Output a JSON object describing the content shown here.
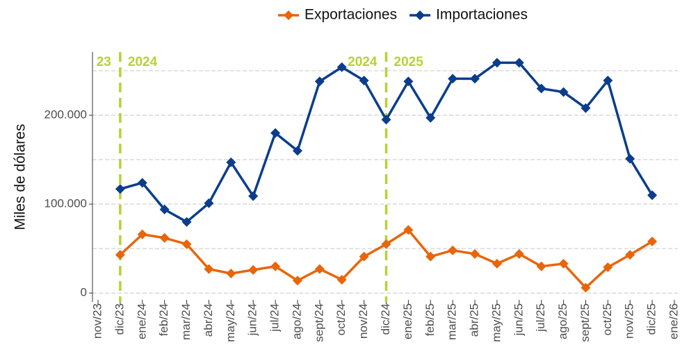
{
  "chart_data": {
    "type": "line",
    "y_label": "Miles de dólares",
    "categories": [
      "nov/23",
      "dic/23",
      "ene/24",
      "feb/24",
      "mar/24",
      "abr/24",
      "may/24",
      "jun/24",
      "jul/24",
      "ago/24",
      "sept/24",
      "oct/24",
      "nov/24",
      "dic/24",
      "ene/25",
      "feb/25",
      "mar/25",
      "abr/25",
      "may/25",
      "jun/25",
      "jul/25",
      "ago/25",
      "sept/25",
      "oct/25",
      "nov/25",
      "dic/25",
      "ene/26"
    ],
    "series": [
      {
        "name": "Exportaciones",
        "color": "#e8650a",
        "values": [
          null,
          43000,
          66000,
          62000,
          55000,
          27000,
          22000,
          26000,
          30000,
          14000,
          27000,
          15000,
          41000,
          55000,
          71000,
          41000,
          48000,
          44000,
          33000,
          44000,
          30000,
          33000,
          6000,
          29000,
          43000,
          58000,
          null
        ]
      },
      {
        "name": "Importaciones",
        "color": "#0b3d8c",
        "values": [
          null,
          117000,
          124000,
          94000,
          80000,
          101000,
          147000,
          109000,
          180000,
          160000,
          238000,
          254000,
          239000,
          195000,
          238000,
          197000,
          241000,
          241000,
          259000,
          259000,
          230000,
          226000,
          208000,
          239000,
          151000,
          110000,
          null
        ]
      }
    ],
    "ylim": [
      -10000,
      271000
    ],
    "yticks": [
      0,
      {
        "value": 100000,
        "label": "100.000"
      },
      {
        "value": 200000,
        "label": "200.000"
      }
    ],
    "minor_yticks": [
      50000,
      150000,
      250000
    ],
    "grid": true,
    "legend": "top",
    "annotations": [
      {
        "at": "dic/23",
        "before": "23",
        "after": "2024"
      },
      {
        "at": "dic/24",
        "before": "2024",
        "after": "2025"
      }
    ],
    "annotation_color": "#b5d334"
  }
}
